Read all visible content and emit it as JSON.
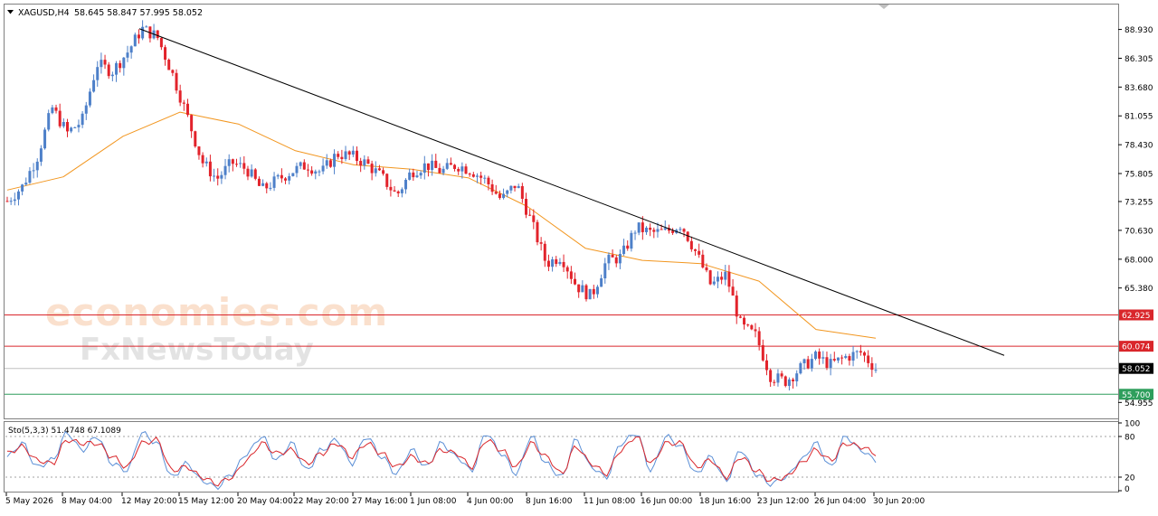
{
  "header": {
    "symbol": "XAGUSD,H4",
    "ohlc": "58.645 58.847 57.995 58.052"
  },
  "watermark": {
    "line1": "economies.com",
    "line2": "FxNewsToday"
  },
  "indicator": {
    "label": "Sto(5,3,3) 51.4748 67.1089",
    "levels": [
      {
        "value": 100,
        "label": "100"
      },
      {
        "value": 80,
        "label": "80"
      },
      {
        "value": 20,
        "label": "20"
      },
      {
        "value": 0,
        "label": "0"
      }
    ]
  },
  "colors": {
    "bull": "#4e80c9",
    "bear": "#e2232b",
    "ma": "#f2961f",
    "trendline": "#000000",
    "resistance": "#d9262b",
    "support": "#2e9e5c",
    "current": "#c0c0c0",
    "sto_main": "#5b8fd6",
    "sto_signal": "#d9262b"
  },
  "chart_data": [
    {
      "type": "candlestick",
      "title": "XAGUSD,H4",
      "ylim": [
        53.5,
        91.2
      ],
      "y_ticks": [
        "88.930",
        "86.305",
        "83.680",
        "81.055",
        "78.430",
        "75.805",
        "73.255",
        "70.630",
        "68.000",
        "65.380",
        "54.955"
      ],
      "x_labels": [
        "5 May 2026",
        "8 May 04:00",
        "12 May 20:00",
        "15 May 12:00",
        "20 May 04:00",
        "22 May 20:00",
        "27 May 16:00",
        "1 Jun 08:00",
        "4 Jun 00:00",
        "8 Jun 16:00",
        "11 Jun 08:00",
        "16 Jun 00:00",
        "18 Jun 16:00",
        "23 Jun 12:00",
        "26 Jun 04:00",
        "30 Jun 20:00"
      ],
      "price_path": [
        73.3,
        74.6,
        77.3,
        81.8,
        79.5,
        80.6,
        85.8,
        85.1,
        86.8,
        89.0,
        88.3,
        85.0,
        81.1,
        76.9,
        75.3,
        76.8,
        76.2,
        74.3,
        75.2,
        76.0,
        76.6,
        75.9,
        77.6,
        77.4,
        76.7,
        75.5,
        73.8,
        76.0,
        76.6,
        76.0,
        76.6,
        76.1,
        75.1,
        73.4,
        74.9,
        71.4,
        67.6,
        68.3,
        65.6,
        64.6,
        67.8,
        68.2,
        70.9,
        70.4,
        70.5,
        71.2,
        68.6,
        65.6,
        66.6,
        61.9,
        61.0,
        57.3,
        56.9,
        58.1,
        59.1,
        58.4,
        59.1,
        59.5,
        58.05
      ],
      "moving_average": [
        {
          "date": "5 May 2026",
          "value": 74.3
        },
        {
          "date": "8 May 04:00",
          "value": 75.5
        },
        {
          "date": "12 May 20:00",
          "value": 79.2
        },
        {
          "date": "15 May 12:00",
          "value": 81.4
        },
        {
          "date": "20 May 04:00",
          "value": 80.3
        },
        {
          "date": "22 May 20:00",
          "value": 77.9
        },
        {
          "date": "27 May 16:00",
          "value": 76.6
        },
        {
          "date": "1 Jun 08:00",
          "value": 76.2
        },
        {
          "date": "4 Jun 00:00",
          "value": 75.4
        },
        {
          "date": "8 Jun 16:00",
          "value": 72.8
        },
        {
          "date": "11 Jun 08:00",
          "value": 69.0
        },
        {
          "date": "16 Jun 00:00",
          "value": 67.9
        },
        {
          "date": "18 Jun 16:00",
          "value": 67.6
        },
        {
          "date": "23 Jun 12:00",
          "value": 66.0
        },
        {
          "date": "26 Jun 04:00",
          "value": 61.6
        }
      ],
      "trendline": {
        "from": {
          "date": "12 May 20:00",
          "value": 89.0
        },
        "to": {
          "date": "30 Jun 20:00",
          "value": 61.3
        }
      },
      "horizontal_lines": [
        {
          "label": "62.925",
          "value": 62.925
        },
        {
          "label": "60.074",
          "value": 60.074
        },
        {
          "label": "58.052",
          "value": 58.052
        },
        {
          "label": "55.700",
          "value": 55.7
        }
      ]
    },
    {
      "type": "line",
      "title": "Sto(5,3,3)",
      "ylim": [
        0,
        100
      ],
      "series": [
        {
          "values": [
            50,
            70,
            35,
            45,
            85,
            60,
            80,
            40,
            30,
            85,
            70,
            20,
            40,
            15,
            5,
            25,
            55,
            80,
            45,
            70,
            30,
            60,
            75,
            40,
            80,
            50,
            25,
            60,
            35,
            70,
            50,
            30,
            85,
            55,
            25,
            80,
            40,
            20,
            75,
            35,
            20,
            70,
            85,
            30,
            80,
            65,
            25,
            50,
            15,
            60,
            25,
            10,
            20,
            45,
            70,
            35,
            80,
            60,
            45
          ]
        },
        {
          "values": [
            55,
            65,
            45,
            40,
            75,
            70,
            70,
            50,
            35,
            70,
            75,
            30,
            35,
            20,
            10,
            20,
            45,
            70,
            55,
            60,
            40,
            55,
            70,
            50,
            70,
            55,
            35,
            50,
            40,
            60,
            55,
            35,
            75,
            60,
            35,
            70,
            50,
            25,
            65,
            40,
            25,
            60,
            80,
            40,
            70,
            70,
            35,
            45,
            20,
            50,
            30,
            15,
            20,
            40,
            60,
            45,
            70,
            65,
            55
          ]
        }
      ]
    }
  ]
}
